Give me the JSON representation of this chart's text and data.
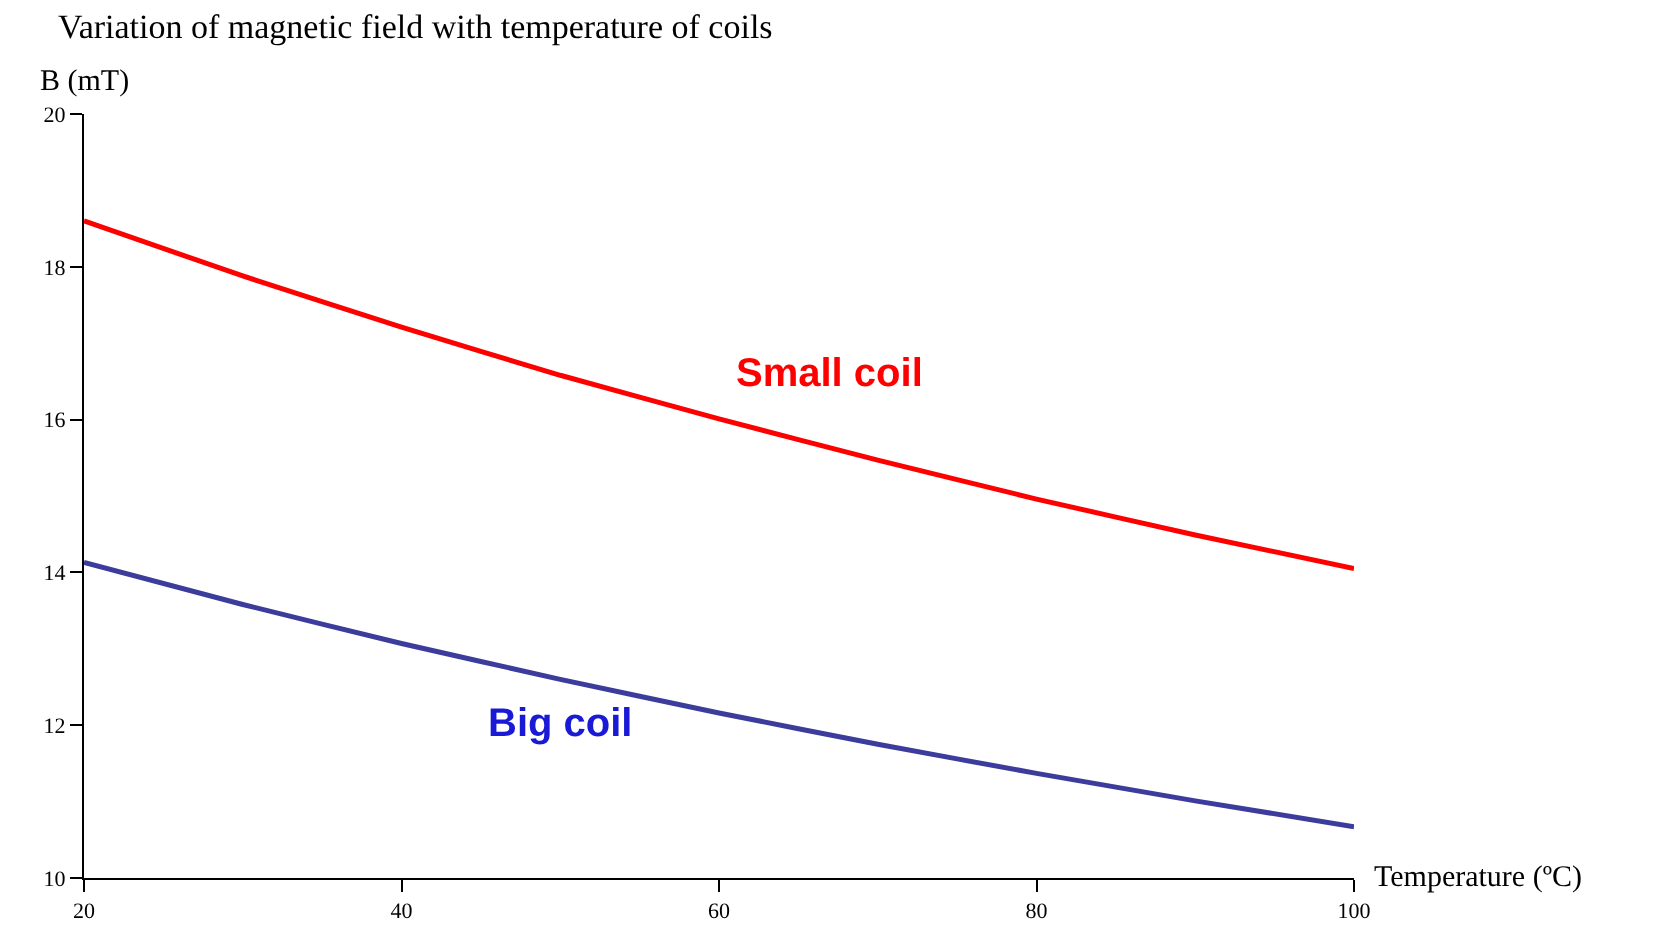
{
  "chart_data": {
    "type": "line",
    "title": "Variation of magnetic field with temperature of coils",
    "xlabel": "Temperature (ºC)",
    "ylabel": "B (mT)",
    "x": [
      20,
      30,
      40,
      50,
      60,
      70,
      80,
      90,
      100
    ],
    "series": [
      {
        "name": "Small coil",
        "color": "#ff0000",
        "values": [
          18.6,
          17.88,
          17.21,
          16.58,
          16.01,
          15.47,
          14.96,
          14.49,
          14.05
        ]
      },
      {
        "name": "Big coil",
        "color": "#3c3c9c",
        "values": [
          14.13,
          13.58,
          13.07,
          12.6,
          12.16,
          11.75,
          11.37,
          11.01,
          10.67
        ]
      }
    ],
    "xlim": [
      20,
      100
    ],
    "xticks": [
      20,
      40,
      60,
      80,
      100
    ],
    "ylim": [
      10,
      20
    ],
    "yticks": [
      10,
      12,
      14,
      16,
      18,
      20
    ]
  }
}
